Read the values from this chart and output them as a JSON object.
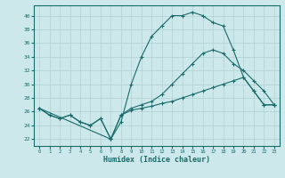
{
  "xlabel": "Humidex (Indice chaleur)",
  "bg_color": "#cce8ea",
  "grid_color": "#b0d0d2",
  "line_color": "#1a6b6b",
  "xlim": [
    -0.5,
    23.5
  ],
  "ylim": [
    21,
    41.5
  ],
  "yticks": [
    22,
    24,
    26,
    28,
    30,
    32,
    34,
    36,
    38,
    40
  ],
  "xticks": [
    0,
    1,
    2,
    3,
    4,
    5,
    6,
    7,
    8,
    9,
    10,
    11,
    12,
    13,
    14,
    15,
    16,
    17,
    18,
    19,
    20,
    21,
    22,
    23
  ],
  "line1_x": [
    0,
    1,
    2,
    3,
    4,
    5,
    6,
    7,
    8,
    9,
    10,
    11,
    12,
    13,
    14,
    15,
    16,
    17,
    18,
    19,
    20,
    21,
    22,
    23
  ],
  "line1_y": [
    26.5,
    25.5,
    25.0,
    25.5,
    24.5,
    24.0,
    25.0,
    22.0,
    24.5,
    30.0,
    34.0,
    37.0,
    38.5,
    40.0,
    40.0,
    40.5,
    40.0,
    39.0,
    38.5,
    35.0,
    31.0,
    29.0,
    27.0,
    27.0
  ],
  "line2_x": [
    0,
    7,
    8,
    9,
    10,
    11,
    12,
    13,
    14,
    15,
    16,
    17,
    18,
    19,
    20,
    21,
    22,
    23
  ],
  "line2_y": [
    26.5,
    22.0,
    25.5,
    26.5,
    27.0,
    27.5,
    28.5,
    30.0,
    31.5,
    33.0,
    34.5,
    35.0,
    34.5,
    33.0,
    32.0,
    30.5,
    29.0,
    27.0
  ],
  "line3_x": [
    0,
    1,
    2,
    3,
    4,
    5,
    6,
    7,
    8,
    9,
    10,
    11,
    12,
    13,
    14,
    15,
    16,
    17,
    18,
    19,
    20,
    21,
    22,
    23
  ],
  "line3_y": [
    26.5,
    25.5,
    25.0,
    25.5,
    24.5,
    24.0,
    25.0,
    22.0,
    25.5,
    26.2,
    26.5,
    26.8,
    27.2,
    27.5,
    28.0,
    28.5,
    29.0,
    29.5,
    30.0,
    30.5,
    31.0,
    29.0,
    27.0,
    27.0
  ]
}
